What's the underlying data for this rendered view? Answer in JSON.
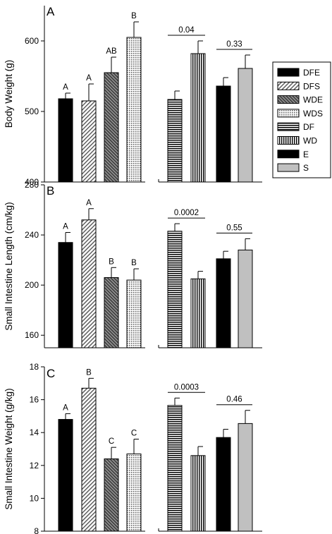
{
  "legend": {
    "entries": [
      {
        "label": "DFE",
        "pattern": "solid-black"
      },
      {
        "label": "DFS",
        "pattern": "diag-light"
      },
      {
        "label": "WDE",
        "pattern": "diag-dark"
      },
      {
        "label": "WDS",
        "pattern": "crosshatch"
      },
      {
        "label": "DF",
        "pattern": "horizontal"
      },
      {
        "label": "WD",
        "pattern": "vertical"
      },
      {
        "label": "E",
        "pattern": "solid-black"
      },
      {
        "label": "S",
        "pattern": "solid-gray"
      }
    ]
  },
  "chart_data": [
    {
      "type": "bar",
      "panel_label": "A",
      "ylabel": "Body Weight (g)",
      "ylim": [
        400,
        650
      ],
      "yticks": [
        400,
        500,
        600
      ],
      "left_group": {
        "categories": [
          "DFE",
          "DFS",
          "WDE",
          "WDS"
        ],
        "values": [
          518,
          515,
          555,
          605
        ],
        "errors": [
          8,
          24,
          22,
          22
        ],
        "letters": [
          "A",
          "A",
          "AB",
          "B"
        ]
      },
      "right_group": {
        "categories": [
          "DF",
          "WD",
          "E",
          "S"
        ],
        "values": [
          517,
          582,
          536,
          561
        ],
        "errors": [
          12,
          18,
          12,
          19
        ],
        "comparisons": [
          {
            "pair": [
              "DF",
              "WD"
            ],
            "label": "0.04"
          },
          {
            "pair": [
              "E",
              "S"
            ],
            "label": "0.33"
          }
        ]
      }
    },
    {
      "type": "bar",
      "panel_label": "B",
      "ylabel": "Small Intestine Length (cm/kg)",
      "ylim": [
        150,
        280
      ],
      "yticks": [
        160,
        200,
        240,
        280
      ],
      "left_group": {
        "categories": [
          "DFE",
          "DFS",
          "WDE",
          "WDS"
        ],
        "values": [
          234,
          252,
          206,
          204
        ],
        "errors": [
          8,
          9,
          8,
          9
        ],
        "letters": [
          "A",
          "A",
          "B",
          "B"
        ]
      },
      "right_group": {
        "categories": [
          "DF",
          "WD",
          "E",
          "S"
        ],
        "values": [
          243,
          205,
          221,
          228
        ],
        "errors": [
          6,
          6,
          6,
          9
        ],
        "comparisons": [
          {
            "pair": [
              "DF",
              "WD"
            ],
            "label": "0.0002"
          },
          {
            "pair": [
              "E",
              "S"
            ],
            "label": "0.55"
          }
        ]
      }
    },
    {
      "type": "bar",
      "panel_label": "C",
      "ylabel": "Small Intestine Weight (g/kg)",
      "ylim": [
        8,
        18
      ],
      "yticks": [
        8,
        10,
        12,
        14,
        16,
        18
      ],
      "left_group": {
        "categories": [
          "DFE",
          "DFS",
          "WDE",
          "WDS"
        ],
        "values": [
          14.8,
          16.7,
          12.4,
          12.7
        ],
        "errors": [
          0.35,
          0.6,
          0.7,
          0.9
        ],
        "letters": [
          "A",
          "B",
          "C",
          "C"
        ]
      },
      "right_group": {
        "categories": [
          "DF",
          "WD",
          "E",
          "S"
        ],
        "values": [
          15.65,
          12.6,
          13.7,
          14.55
        ],
        "errors": [
          0.45,
          0.55,
          0.5,
          0.8
        ],
        "comparisons": [
          {
            "pair": [
              "DF",
              "WD"
            ],
            "label": "0.0003"
          },
          {
            "pair": [
              "E",
              "S"
            ],
            "label": "0.46"
          }
        ]
      }
    }
  ]
}
